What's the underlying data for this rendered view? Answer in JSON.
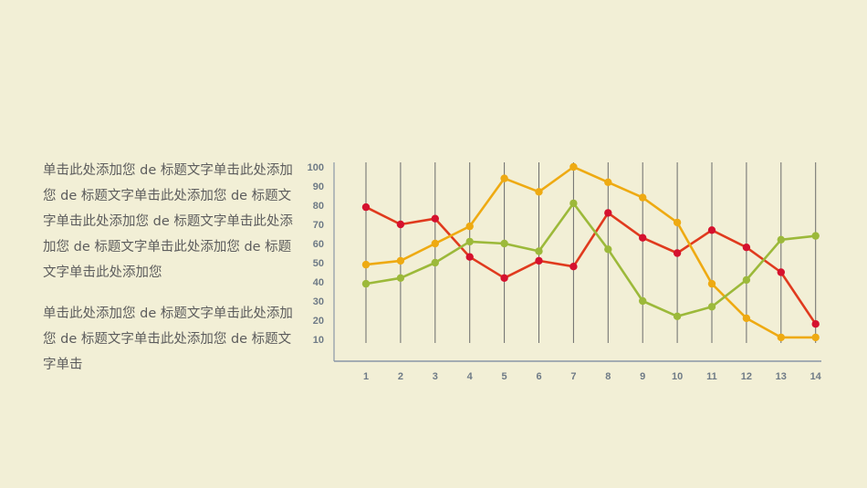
{
  "paragraphs": [
    "单击此处添加您 de 标题文字单击此处添加您 de 标题文字单击此处添加您 de 标题文字单击此处添加您 de 标题文字单击此处添加您 de 标题文字单击此处添加您 de 标题文字单击此处添加您",
    "单击此处添加您 de 标题文字单击此处添加您 de 标题文字单击此处添加您 de 标题文字单击"
  ],
  "chart_data": {
    "type": "line",
    "title": "",
    "xlabel": "",
    "ylabel": "",
    "x": [
      1,
      2,
      3,
      4,
      5,
      6,
      7,
      8,
      9,
      10,
      11,
      12,
      13,
      14
    ],
    "y_ticks": [
      10,
      20,
      30,
      40,
      50,
      60,
      70,
      80,
      90,
      100
    ],
    "ylim": [
      0,
      100
    ],
    "grid": "vertical",
    "legend": "none",
    "series": [
      {
        "color": "#e03a1e",
        "values": [
          79,
          70,
          73,
          53,
          42,
          51,
          48,
          76,
          63,
          55,
          67,
          58,
          45,
          18
        ]
      },
      {
        "color": "#eeaa12",
        "values": [
          49,
          51,
          60,
          69,
          94,
          87,
          100,
          92,
          84,
          71,
          39,
          21,
          11,
          11
        ]
      },
      {
        "color": "#9cb93a",
        "values": [
          39,
          42,
          50,
          61,
          60,
          56,
          81,
          57,
          30,
          22,
          27,
          41,
          62,
          64
        ]
      }
    ],
    "marker_colors": [
      "#d5112e",
      "#eeaa12",
      "#9cb93a"
    ]
  }
}
